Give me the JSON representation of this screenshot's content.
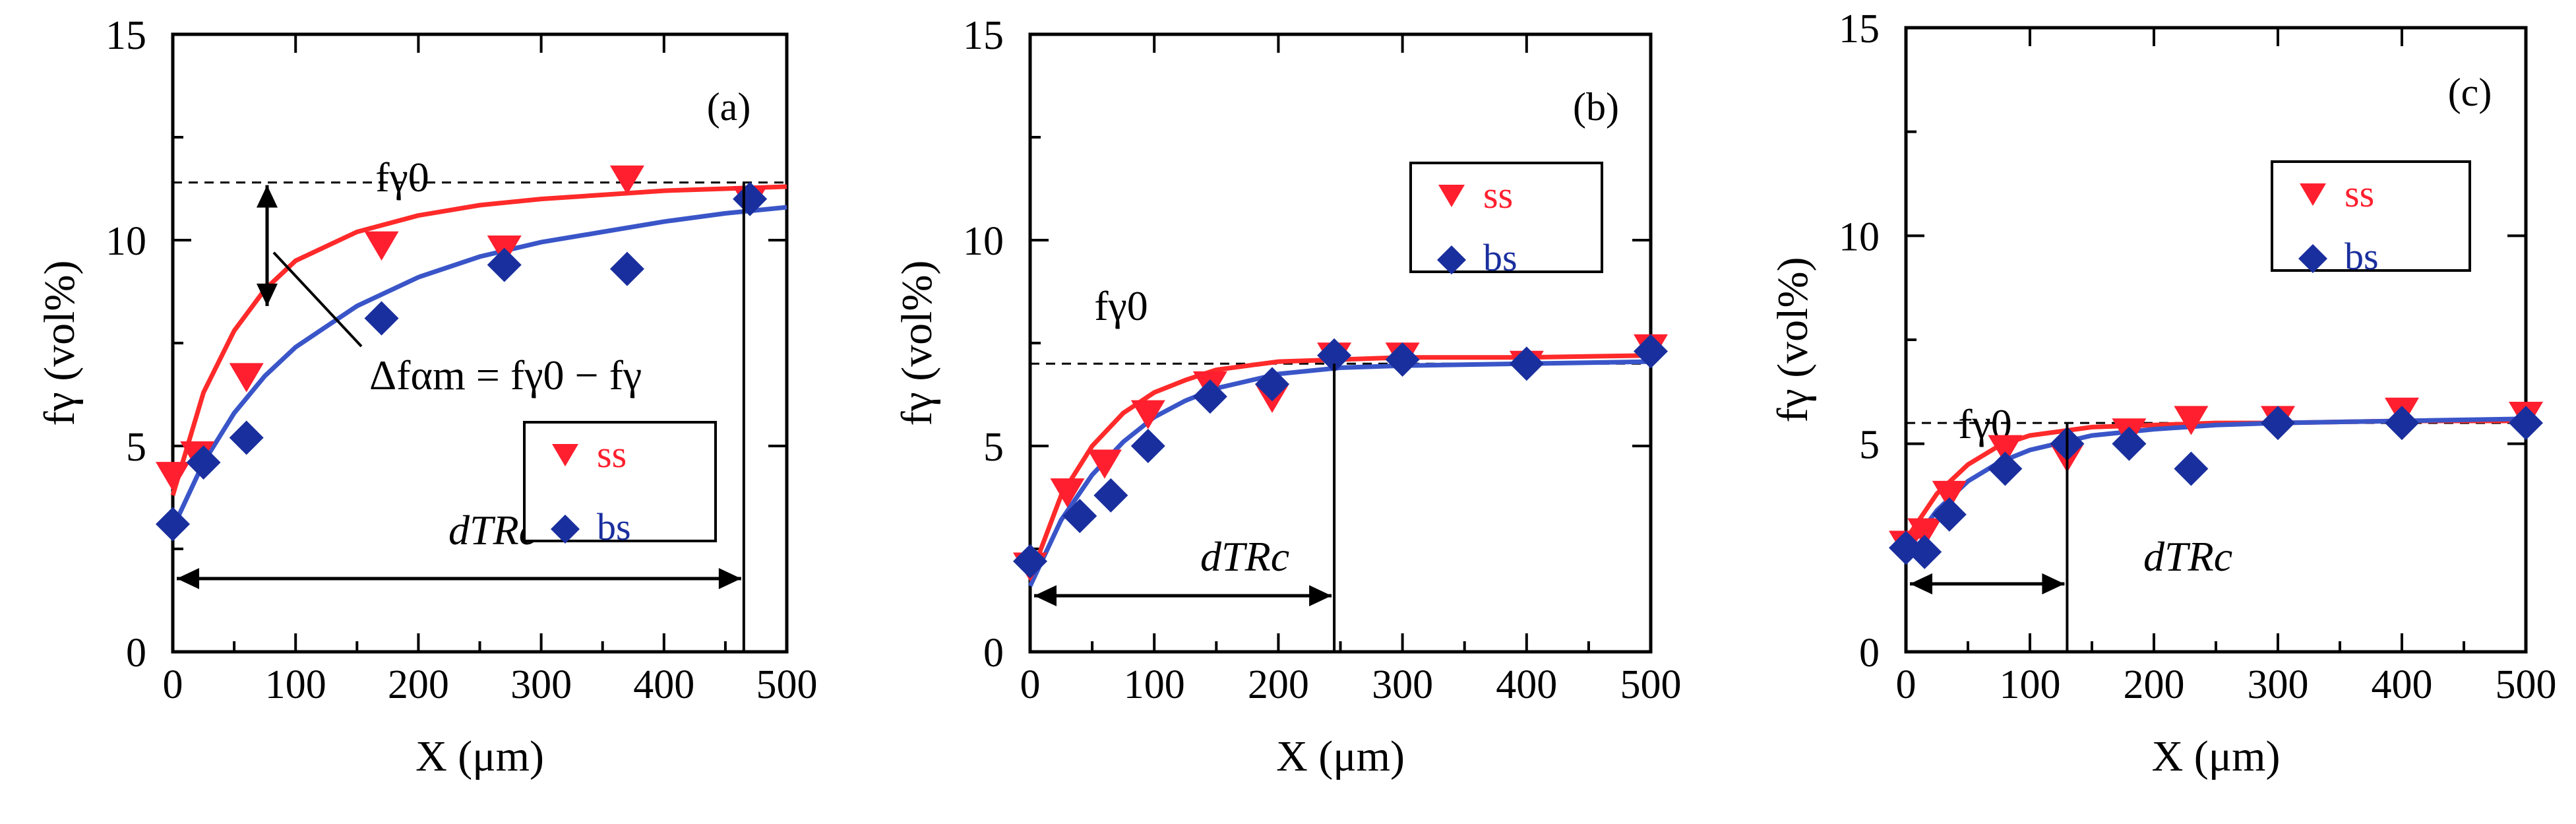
{
  "colors": {
    "ss": "#ff1f2e",
    "bs": "#1a2f9e",
    "ss_curve": "#ff2a2a",
    "bs_curve": "#3a55c8"
  },
  "chart_data": [
    {
      "type": "scatter",
      "panel_label": "(a)",
      "xlabel": "X (μm)",
      "ylabel": "fγ (vol%)",
      "xlim": [
        0,
        500
      ],
      "ylim": [
        0,
        15
      ],
      "xticks": [
        "0",
        "100",
        "200",
        "300",
        "400",
        "500"
      ],
      "yticks": [
        "0",
        "5",
        "10",
        "15"
      ],
      "reference_line": {
        "label": "fγ0",
        "y": 11.4
      },
      "dimension_label": "dTRc",
      "dimension_x": 465,
      "difference_label": "Δfαm = fγ0 − fγ",
      "legend_position": "lower-right",
      "series": [
        {
          "name": "ss",
          "marker": "triangle-down",
          "x": [
            0,
            20,
            60,
            170,
            270,
            370,
            470
          ],
          "y": [
            4.3,
            4.8,
            6.7,
            9.9,
            9.8,
            11.5,
            11.0
          ],
          "fit": {
            "x": [
              0,
              25,
              50,
              75,
              100,
              150,
              200,
              250,
              300,
              350,
              400,
              450,
              500
            ],
            "y": [
              3.8,
              6.3,
              7.8,
              8.8,
              9.5,
              10.2,
              10.6,
              10.85,
              11.0,
              11.1,
              11.2,
              11.25,
              11.3
            ]
          }
        },
        {
          "name": "bs",
          "marker": "diamond",
          "x": [
            0,
            25,
            60,
            170,
            270,
            370,
            470
          ],
          "y": [
            3.1,
            4.6,
            5.2,
            8.1,
            9.4,
            9.3,
            11.0
          ],
          "fit": {
            "x": [
              0,
              25,
              50,
              75,
              100,
              150,
              200,
              250,
              300,
              350,
              400,
              450,
              500
            ],
            "y": [
              3.0,
              4.6,
              5.8,
              6.7,
              7.4,
              8.4,
              9.1,
              9.6,
              9.95,
              10.2,
              10.45,
              10.65,
              10.8
            ]
          }
        }
      ]
    },
    {
      "type": "scatter",
      "panel_label": "(b)",
      "xlabel": "X (μm)",
      "ylabel": "fγ (vol%)",
      "xlim": [
        0,
        500
      ],
      "ylim": [
        0,
        15
      ],
      "xticks": [
        "0",
        "100",
        "200",
        "300",
        "400",
        "500"
      ],
      "yticks": [
        "0",
        "5",
        "10",
        "15"
      ],
      "reference_line": {
        "label": "fγ0",
        "y": 7.0
      },
      "dimension_label": "dTRc",
      "dimension_x": 245,
      "legend_position": "top-center",
      "series": [
        {
          "name": "ss",
          "marker": "triangle-down",
          "x": [
            0,
            30,
            60,
            95,
            145,
            195,
            245,
            300,
            400,
            500
          ],
          "y": [
            2.1,
            3.9,
            4.6,
            5.8,
            6.5,
            6.2,
            7.2,
            7.2,
            7.0,
            7.4
          ],
          "fit": {
            "x": [
              0,
              25,
              50,
              75,
              100,
              125,
              150,
              200,
              250,
              300,
              400,
              500
            ],
            "y": [
              1.8,
              3.8,
              5.0,
              5.8,
              6.3,
              6.6,
              6.85,
              7.05,
              7.1,
              7.15,
              7.15,
              7.2
            ]
          }
        },
        {
          "name": "bs",
          "marker": "diamond",
          "x": [
            0,
            40,
            65,
            95,
            145,
            195,
            245,
            300,
            400,
            500
          ],
          "y": [
            2.2,
            3.3,
            3.8,
            5.0,
            6.2,
            6.5,
            7.2,
            7.1,
            7.0,
            7.3
          ],
          "fit": {
            "x": [
              0,
              25,
              50,
              75,
              100,
              125,
              150,
              200,
              250,
              300,
              400,
              500
            ],
            "y": [
              1.6,
              3.2,
              4.3,
              5.1,
              5.7,
              6.1,
              6.4,
              6.75,
              6.9,
              6.95,
              7.0,
              7.05
            ]
          }
        }
      ]
    },
    {
      "type": "scatter",
      "panel_label": "(c)",
      "xlabel": "X (μm)",
      "ylabel": "fγ (vol%)",
      "xlim": [
        0,
        500
      ],
      "ylim": [
        0,
        15
      ],
      "xticks": [
        "0",
        "100",
        "200",
        "300",
        "400",
        "500"
      ],
      "yticks": [
        "0",
        "5",
        "10",
        "15"
      ],
      "reference_line": {
        "label": "fγ0",
        "y": 5.5
      },
      "dimension_label": "dTRc",
      "dimension_x": 130,
      "legend_position": "top-center",
      "series": [
        {
          "name": "ss",
          "marker": "triangle-down",
          "x": [
            0,
            15,
            35,
            80,
            130,
            180,
            230,
            300,
            400,
            500
          ],
          "y": [
            2.6,
            2.9,
            3.8,
            4.9,
            4.7,
            5.3,
            5.6,
            5.6,
            5.8,
            5.7
          ],
          "fit": {
            "x": [
              0,
              25,
              50,
              75,
              100,
              150,
              200,
              250,
              300,
              400,
              500
            ],
            "y": [
              2.7,
              3.8,
              4.5,
              4.95,
              5.2,
              5.4,
              5.45,
              5.5,
              5.5,
              5.55,
              5.55
            ]
          }
        },
        {
          "name": "bs",
          "marker": "diamond",
          "x": [
            0,
            15,
            35,
            80,
            130,
            180,
            230,
            300,
            400,
            500
          ],
          "y": [
            2.5,
            2.4,
            3.3,
            4.4,
            5.0,
            5.0,
            4.4,
            5.5,
            5.5,
            5.5
          ],
          "fit": {
            "x": [
              0,
              25,
              50,
              75,
              100,
              150,
              200,
              250,
              300,
              400,
              500
            ],
            "y": [
              2.4,
              3.4,
              4.1,
              4.55,
              4.85,
              5.2,
              5.35,
              5.45,
              5.5,
              5.55,
              5.6
            ]
          }
        }
      ]
    }
  ]
}
